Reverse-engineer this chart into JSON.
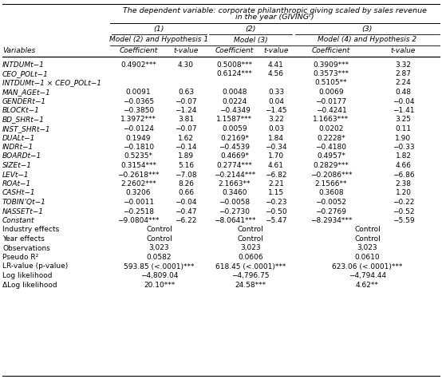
{
  "title_line1": "The dependent variable: corporate philanthropic giving scaled by sales revenue",
  "title_line2": "in the year (GIVINGᵗ)",
  "col_group_headers": [
    "(1)",
    "(2)",
    "(3)"
  ],
  "subheaders": [
    "Model (2) and Hypothesis 1",
    "Model (3)",
    "Model (4) and Hypothesis 2"
  ],
  "col_labels": [
    "Coefficient",
    "t-value",
    "Coefficient",
    "t-value",
    "Coefficient",
    "t-value"
  ],
  "row_label_header": "Variables",
  "rows": [
    [
      "INTDUMt−1",
      "0.4902***",
      "4.30",
      "0.5008***",
      "4.41",
      "0.3909***",
      "3.32"
    ],
    [
      "CEO_POLt−1",
      "",
      "",
      "0.6124***",
      "4.56",
      "0.3573***",
      "2.87"
    ],
    [
      "INTDUMt−1 × CEO_POLt−1",
      "",
      "",
      "",
      "",
      "0.5105**",
      "2.24"
    ],
    [
      "MAN_AGEt−1",
      "0.0091",
      "0.63",
      "0.0048",
      "0.33",
      "0.0069",
      "0.48"
    ],
    [
      "GENDERt−1",
      "−0.0365",
      "−0.07",
      "0.0224",
      "0.04",
      "−0.0177",
      "−0.04"
    ],
    [
      "BLOCKt−1",
      "−0.3850",
      "−1.24",
      "−0.4349",
      "−1.45",
      "−0.4241",
      "−1.41"
    ],
    [
      "BD_SHRt−1",
      "1.3972***",
      "3.81",
      "1.1587***",
      "3.22",
      "1.1663***",
      "3.25"
    ],
    [
      "INST_SHRt−1",
      "−0.0124",
      "−0.07",
      "0.0059",
      "0.03",
      "0.0202",
      "0.11"
    ],
    [
      "DUALt−1",
      "0.1949",
      "1.62",
      "0.2169*",
      "1.84",
      "0.2228*",
      "1.90"
    ],
    [
      "INDRt−1",
      "−0.1810",
      "−0.14",
      "−0.4539",
      "−0.34",
      "−0.4180",
      "−0.33"
    ],
    [
      "BOARDt−1",
      "0.5235*",
      "1.89",
      "0.4669*",
      "1.70",
      "0.4957*",
      "1.82"
    ],
    [
      "SIZEt−1",
      "0.3154***",
      "5.16",
      "0.2774***",
      "4.61",
      "0.2829***",
      "4.66"
    ],
    [
      "LEVt−1",
      "−0.2618***",
      "−7.08",
      "−0.2144***",
      "−6.82",
      "−0.2086***",
      "−6.86"
    ],
    [
      "ROAt−1",
      "2.2602***",
      "8.26",
      "2.1663**",
      "2.21",
      "2.1566**",
      "2.38"
    ],
    [
      "CASHt−1",
      "0.3206",
      "0.66",
      "0.3460",
      "1.15",
      "0.3608",
      "1.20"
    ],
    [
      "TOBIN’Qt−1",
      "−0.0011",
      "−0.04",
      "−0.0058",
      "−0.23",
      "−0.0052",
      "−0.22"
    ],
    [
      "NASSETt−1",
      "−0.2518",
      "−0.47",
      "−0.2730",
      "−0.50",
      "−0.2769",
      "−0.52"
    ],
    [
      "Constant",
      "−9.0804***",
      "−6.22",
      "−8.0641***",
      "−5.47",
      "−8.2934***",
      "−5.59"
    ],
    [
      "Industry effects",
      "Control",
      "",
      "Control",
      "",
      "Control",
      ""
    ],
    [
      "Year effects",
      "Control",
      "",
      "Control",
      "",
      "Control",
      ""
    ],
    [
      "Observations",
      "3,023",
      "",
      "3,023",
      "",
      "3,023",
      ""
    ],
    [
      "Pseudo R²",
      "0.0582",
      "",
      "0.0606",
      "",
      "0.0610",
      ""
    ],
    [
      "LR-value (p-value)",
      "593.85 (<.0001)***",
      "",
      "618.45 (<.0001)***",
      "",
      "623.06 (<.0001)***",
      ""
    ],
    [
      "Log likelihood",
      "−4,809.04",
      "",
      "−4,796.75",
      "",
      "−4,794.44",
      ""
    ],
    [
      "ΔLog likelihood",
      "20.10***",
      "",
      "24.58***",
      "",
      "4.62**",
      ""
    ]
  ],
  "italic_var_rows": 18,
  "bg_color": "#ffffff",
  "text_color": "#000000"
}
